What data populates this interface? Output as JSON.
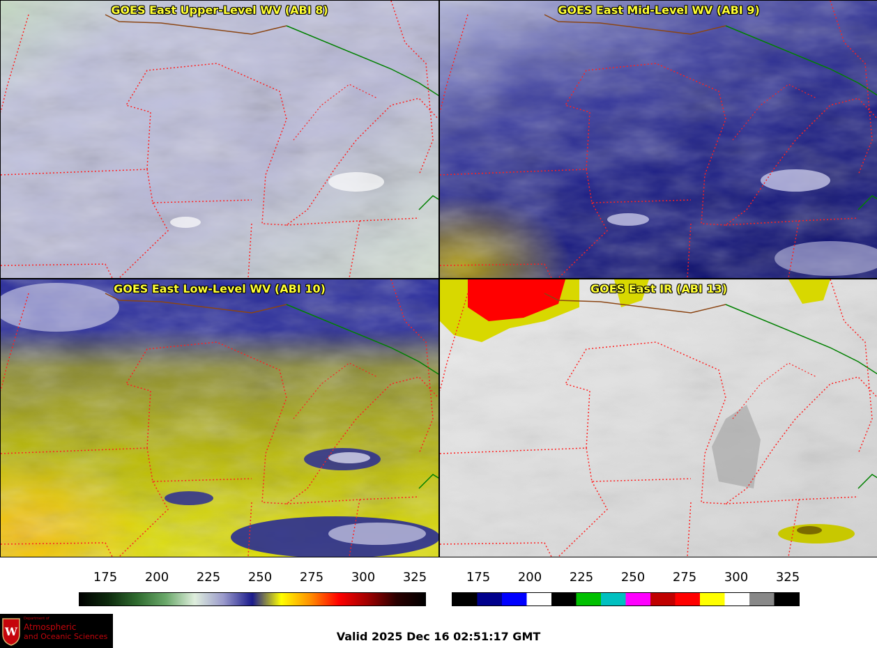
{
  "panels": [
    {
      "id": "upper-level-wv",
      "title": "GOES East Upper-Level WV (ABI 8)"
    },
    {
      "id": "mid-level-wv",
      "title": "GOES East Mid-Level WV (ABI 9)"
    },
    {
      "id": "low-level-wv",
      "title": "GOES East Low-Level WV (ABI 10)"
    },
    {
      "id": "ir",
      "title": "GOES East IR (ABI 13)"
    }
  ],
  "colorbars": {
    "wv": {
      "ticks": [
        "175",
        "200",
        "225",
        "250",
        "275",
        "300",
        "325"
      ],
      "colors": [
        "#000000",
        "#0d2a0d",
        "#2f6b2f",
        "#6aa86a",
        "#dfeedd",
        "#9a9acb",
        "#1a1a8c",
        "#ffff00",
        "#ff9000",
        "#ff0000",
        "#a00000",
        "#2a0000",
        "#000000"
      ]
    },
    "ir": {
      "ticks": [
        "175",
        "200",
        "225",
        "250",
        "275",
        "300",
        "325"
      ],
      "colors": [
        "#000000",
        "#00008c",
        "#0000ff",
        "#ffffff",
        "#000000",
        "#00c000",
        "#00c0c0",
        "#ff00ff",
        "#c00000",
        "#ff0000",
        "#ffff00",
        "#ffffff",
        "#888888",
        "#000000"
      ]
    }
  },
  "valid_time": "Valid 2025 Dec 16 02:51:17 GMT",
  "logo": {
    "department_of": "Department of",
    "line1": "Atmospheric",
    "line2": "and Oceanic Sciences"
  },
  "colors": {
    "title": "#ffff33",
    "state_borders": "#ff2020",
    "international_border": "#008000"
  }
}
